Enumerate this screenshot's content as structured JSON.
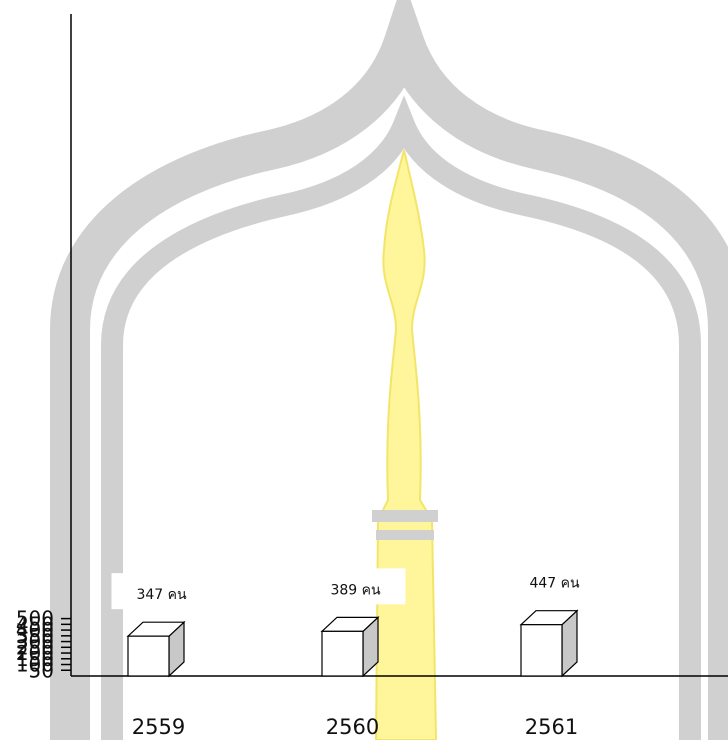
{
  "chart_data": {
    "type": "bar",
    "categories": [
      "2559",
      "2560",
      "2561"
    ],
    "values": [
      347,
      389,
      447
    ],
    "data_labels": [
      "347 คน",
      "389 คน",
      "447 คน"
    ],
    "yticks": [
      50,
      100,
      150,
      200,
      250,
      300,
      350,
      400,
      450,
      500
    ],
    "ylim": [
      0,
      500
    ],
    "grid": false,
    "style": "3d-bar",
    "colors": {
      "bar_face": "#ffffff",
      "bar_side": "#c8c8c8",
      "bar_stroke": "#000000",
      "watermark_arch": "#d0d0d0",
      "watermark_spire": "#fff59a"
    }
  }
}
